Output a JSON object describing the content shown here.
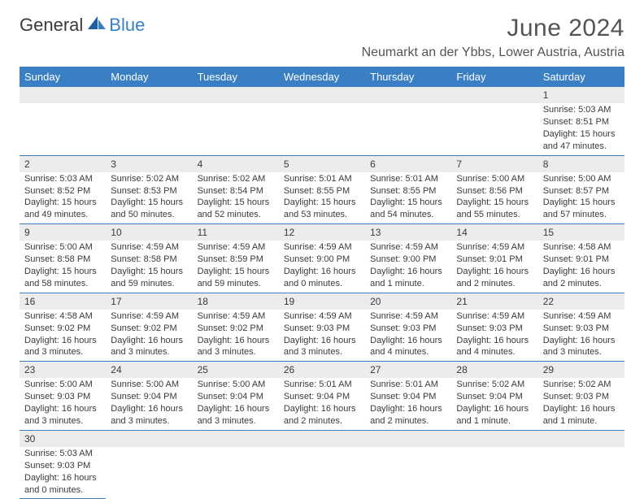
{
  "logo": {
    "text1": "General",
    "text2": "Blue"
  },
  "title": "June 2024",
  "location": "Neumarkt an der Ybbs, Lower Austria, Austria",
  "colors": {
    "header_bg": "#3a7fc4",
    "header_fg": "#ffffff",
    "daynum_bg": "#ececec",
    "text": "#3a3a3a",
    "rule": "#3a7fc4"
  },
  "font": {
    "family": "Arial",
    "day_header_size": 13,
    "cell_size": 11,
    "title_size": 30,
    "location_size": 16
  },
  "day_headers": [
    "Sunday",
    "Monday",
    "Tuesday",
    "Wednesday",
    "Thursday",
    "Friday",
    "Saturday"
  ],
  "weeks": [
    [
      null,
      null,
      null,
      null,
      null,
      null,
      {
        "n": "1",
        "sr": "5:03 AM",
        "ss": "8:51 PM",
        "dl": "15 hours and 47 minutes."
      }
    ],
    [
      {
        "n": "2",
        "sr": "5:03 AM",
        "ss": "8:52 PM",
        "dl": "15 hours and 49 minutes."
      },
      {
        "n": "3",
        "sr": "5:02 AM",
        "ss": "8:53 PM",
        "dl": "15 hours and 50 minutes."
      },
      {
        "n": "4",
        "sr": "5:02 AM",
        "ss": "8:54 PM",
        "dl": "15 hours and 52 minutes."
      },
      {
        "n": "5",
        "sr": "5:01 AM",
        "ss": "8:55 PM",
        "dl": "15 hours and 53 minutes."
      },
      {
        "n": "6",
        "sr": "5:01 AM",
        "ss": "8:55 PM",
        "dl": "15 hours and 54 minutes."
      },
      {
        "n": "7",
        "sr": "5:00 AM",
        "ss": "8:56 PM",
        "dl": "15 hours and 55 minutes."
      },
      {
        "n": "8",
        "sr": "5:00 AM",
        "ss": "8:57 PM",
        "dl": "15 hours and 57 minutes."
      }
    ],
    [
      {
        "n": "9",
        "sr": "5:00 AM",
        "ss": "8:58 PM",
        "dl": "15 hours and 58 minutes."
      },
      {
        "n": "10",
        "sr": "4:59 AM",
        "ss": "8:58 PM",
        "dl": "15 hours and 59 minutes."
      },
      {
        "n": "11",
        "sr": "4:59 AM",
        "ss": "8:59 PM",
        "dl": "15 hours and 59 minutes."
      },
      {
        "n": "12",
        "sr": "4:59 AM",
        "ss": "9:00 PM",
        "dl": "16 hours and 0 minutes."
      },
      {
        "n": "13",
        "sr": "4:59 AM",
        "ss": "9:00 PM",
        "dl": "16 hours and 1 minute."
      },
      {
        "n": "14",
        "sr": "4:59 AM",
        "ss": "9:01 PM",
        "dl": "16 hours and 2 minutes."
      },
      {
        "n": "15",
        "sr": "4:58 AM",
        "ss": "9:01 PM",
        "dl": "16 hours and 2 minutes."
      }
    ],
    [
      {
        "n": "16",
        "sr": "4:58 AM",
        "ss": "9:02 PM",
        "dl": "16 hours and 3 minutes."
      },
      {
        "n": "17",
        "sr": "4:59 AM",
        "ss": "9:02 PM",
        "dl": "16 hours and 3 minutes."
      },
      {
        "n": "18",
        "sr": "4:59 AM",
        "ss": "9:02 PM",
        "dl": "16 hours and 3 minutes."
      },
      {
        "n": "19",
        "sr": "4:59 AM",
        "ss": "9:03 PM",
        "dl": "16 hours and 3 minutes."
      },
      {
        "n": "20",
        "sr": "4:59 AM",
        "ss": "9:03 PM",
        "dl": "16 hours and 4 minutes."
      },
      {
        "n": "21",
        "sr": "4:59 AM",
        "ss": "9:03 PM",
        "dl": "16 hours and 4 minutes."
      },
      {
        "n": "22",
        "sr": "4:59 AM",
        "ss": "9:03 PM",
        "dl": "16 hours and 3 minutes."
      }
    ],
    [
      {
        "n": "23",
        "sr": "5:00 AM",
        "ss": "9:03 PM",
        "dl": "16 hours and 3 minutes."
      },
      {
        "n": "24",
        "sr": "5:00 AM",
        "ss": "9:04 PM",
        "dl": "16 hours and 3 minutes."
      },
      {
        "n": "25",
        "sr": "5:00 AM",
        "ss": "9:04 PM",
        "dl": "16 hours and 3 minutes."
      },
      {
        "n": "26",
        "sr": "5:01 AM",
        "ss": "9:04 PM",
        "dl": "16 hours and 2 minutes."
      },
      {
        "n": "27",
        "sr": "5:01 AM",
        "ss": "9:04 PM",
        "dl": "16 hours and 2 minutes."
      },
      {
        "n": "28",
        "sr": "5:02 AM",
        "ss": "9:04 PM",
        "dl": "16 hours and 1 minute."
      },
      {
        "n": "29",
        "sr": "5:02 AM",
        "ss": "9:03 PM",
        "dl": "16 hours and 1 minute."
      }
    ],
    [
      {
        "n": "30",
        "sr": "5:03 AM",
        "ss": "9:03 PM",
        "dl": "16 hours and 0 minutes."
      },
      null,
      null,
      null,
      null,
      null,
      null
    ]
  ],
  "labels": {
    "sunrise": "Sunrise: ",
    "sunset": "Sunset: ",
    "daylight": "Daylight: "
  }
}
